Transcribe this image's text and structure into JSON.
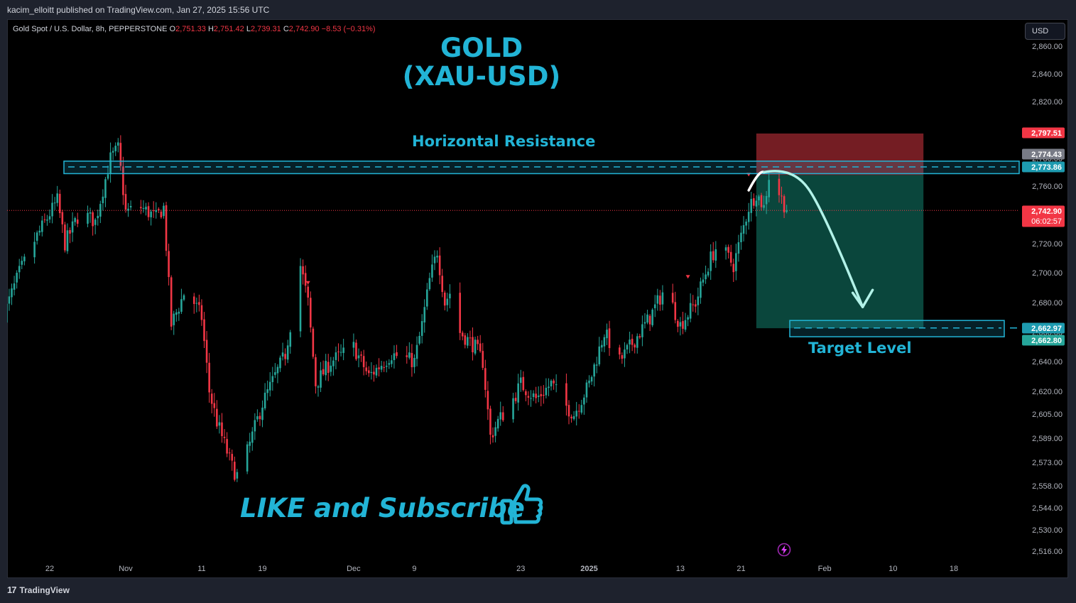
{
  "header": {
    "published_by": "kacim_elloitt published on TradingView.com, Jan 27, 2025 15:56 UTC"
  },
  "footer": {
    "brand": "TradingView"
  },
  "currency_button": "USD",
  "legend": {
    "symbol": "Gold Spot / U.S. Dollar, 8h, PEPPERSTONE",
    "o_key": "O",
    "o": "2,751.33",
    "h_key": "H",
    "h": "2,751.42",
    "l_key": "L",
    "l": "2,739.31",
    "c_key": "C",
    "c": "2,742.90",
    "change": "−8.53 (−0.31%)"
  },
  "annotations": {
    "title_line1": "GOLD",
    "title_line2": "(XAU-USD)",
    "resistance": "Horizontal Resistance",
    "target": "Target Level",
    "like": "LIKE and Subscribe"
  },
  "colors": {
    "up": "#26a69a",
    "down": "#f23645",
    "accent": "#22b4d6",
    "stop_zone": "#7a1f25",
    "profit_zone": "#0b4a3f"
  },
  "icons": {
    "thumb": "thumbs-up-icon",
    "lightning": "lightning-icon"
  },
  "chart_data": {
    "type": "candlestick",
    "symbol": "Gold Spot / U.S. Dollar",
    "interval": "8h",
    "y_ticks": [
      "2,860.00",
      "2,840.00",
      "2,820.00",
      "2,800.00",
      "2,780.00",
      "2,760.00",
      "2,740.00",
      "2,720.00",
      "2,700.00",
      "2,680.00",
      "2,660.00",
      "2,640.00",
      "2,620.00",
      "2,605.00",
      "2,589.00",
      "2,573.00",
      "2,558.00",
      "2,544.00",
      "2,530.00",
      "2,516.00"
    ],
    "x_ticks": [
      {
        "label": "22",
        "date": "2024-10-22"
      },
      {
        "label": "Nov",
        "date": "2024-11-01"
      },
      {
        "label": "11",
        "date": "2024-11-11"
      },
      {
        "label": "19",
        "date": "2024-11-19"
      },
      {
        "label": "Dec",
        "date": "2024-12-01"
      },
      {
        "label": "9",
        "date": "2024-12-09"
      },
      {
        "label": "23",
        "date": "2024-12-23"
      },
      {
        "label": "2025",
        "date": "2025-01-01"
      },
      {
        "label": "13",
        "date": "2025-01-13"
      },
      {
        "label": "21",
        "date": "2025-01-21"
      },
      {
        "label": "Feb",
        "date": "2025-02-01"
      },
      {
        "label": "10",
        "date": "2025-02-10"
      },
      {
        "label": "18",
        "date": "2025-02-18"
      }
    ],
    "price_labels": [
      {
        "value": 2797.51,
        "text": "2,797.51",
        "color": "#f23645"
      },
      {
        "value": 2774.43,
        "text": "2,774.43",
        "color": "#787b86"
      },
      {
        "value": 2773.86,
        "text": "2,773.86",
        "color": "#1e9bb0"
      },
      {
        "value": 2742.9,
        "text": "2,742.90",
        "color": "#f23645",
        "countdown": "06:02:57"
      },
      {
        "value": 2662.97,
        "text": "2,662.97",
        "color": "#1e9bb0"
      },
      {
        "value": 2662.8,
        "text": "2,662.80",
        "color": "#26a69a"
      }
    ],
    "last_price": 2742.9,
    "resistance_zone": {
      "start": "2024-10-16",
      "end": "2025-03-01",
      "top": 2778,
      "bottom": 2769,
      "level": 2773.86
    },
    "target_zone": {
      "start": "2025-01-24",
      "end": "2025-02-24",
      "top": 2668,
      "bottom": 2657,
      "level": 2662.97
    },
    "short_position": {
      "start": "2025-01-23",
      "end": "2025-02-14",
      "entry": 2768,
      "stop": 2797.51,
      "target": 2662.8
    },
    "path": [
      {
        "date": "2024-10-16",
        "price": 2672
      },
      {
        "date": "2024-10-18",
        "price": 2700
      },
      {
        "date": "2024-10-20",
        "price": 2722
      },
      {
        "date": "2024-10-23",
        "price": 2750
      },
      {
        "date": "2024-10-24",
        "price": 2720
      },
      {
        "date": "2024-10-26",
        "price": 2742
      },
      {
        "date": "2024-10-28",
        "price": 2735
      },
      {
        "date": "2024-10-30",
        "price": 2780
      },
      {
        "date": "2024-10-31",
        "price": 2787
      },
      {
        "date": "2024-11-01",
        "price": 2742
      },
      {
        "date": "2024-11-03",
        "price": 2745
      },
      {
        "date": "2024-11-05",
        "price": 2738
      },
      {
        "date": "2024-11-06",
        "price": 2745
      },
      {
        "date": "2024-11-07",
        "price": 2665
      },
      {
        "date": "2024-11-09",
        "price": 2690
      },
      {
        "date": "2024-11-11",
        "price": 2670
      },
      {
        "date": "2024-11-12",
        "price": 2620
      },
      {
        "date": "2024-11-13",
        "price": 2600
      },
      {
        "date": "2024-11-15",
        "price": 2570
      },
      {
        "date": "2024-11-16",
        "price": 2562
      },
      {
        "date": "2024-11-17",
        "price": 2580
      },
      {
        "date": "2024-11-19",
        "price": 2612
      },
      {
        "date": "2024-11-22",
        "price": 2645
      },
      {
        "date": "2024-11-24",
        "price": 2705
      },
      {
        "date": "2024-11-25",
        "price": 2680
      },
      {
        "date": "2024-11-26",
        "price": 2625
      },
      {
        "date": "2024-11-28",
        "price": 2640
      },
      {
        "date": "2024-12-01",
        "price": 2650
      },
      {
        "date": "2024-12-03",
        "price": 2630
      },
      {
        "date": "2024-12-06",
        "price": 2645
      },
      {
        "date": "2024-12-09",
        "price": 2640
      },
      {
        "date": "2024-12-10",
        "price": 2665
      },
      {
        "date": "2024-12-11",
        "price": 2695
      },
      {
        "date": "2024-12-12",
        "price": 2715
      },
      {
        "date": "2024-12-13",
        "price": 2680
      },
      {
        "date": "2024-12-14",
        "price": 2690
      },
      {
        "date": "2024-12-15",
        "price": 2660
      },
      {
        "date": "2024-12-17",
        "price": 2650
      },
      {
        "date": "2024-12-18",
        "price": 2640
      },
      {
        "date": "2024-12-19",
        "price": 2590
      },
      {
        "date": "2024-12-20",
        "price": 2600
      },
      {
        "date": "2024-12-22",
        "price": 2615
      },
      {
        "date": "2024-12-23",
        "price": 2625
      },
      {
        "date": "2024-12-25",
        "price": 2615
      },
      {
        "date": "2024-12-27",
        "price": 2625
      },
      {
        "date": "2024-12-29",
        "price": 2610
      },
      {
        "date": "2024-12-30",
        "price": 2605
      },
      {
        "date": "2025-01-01",
        "price": 2625
      },
      {
        "date": "2025-01-03",
        "price": 2660
      },
      {
        "date": "2025-01-05",
        "price": 2640
      },
      {
        "date": "2025-01-07",
        "price": 2655
      },
      {
        "date": "2025-01-09",
        "price": 2670
      },
      {
        "date": "2025-01-11",
        "price": 2690
      },
      {
        "date": "2025-01-13",
        "price": 2665
      },
      {
        "date": "2025-01-15",
        "price": 2680
      },
      {
        "date": "2025-01-17",
        "price": 2710
      },
      {
        "date": "2025-01-18",
        "price": 2720
      },
      {
        "date": "2025-01-20",
        "price": 2705
      },
      {
        "date": "2025-01-21",
        "price": 2725
      },
      {
        "date": "2025-01-22",
        "price": 2745
      },
      {
        "date": "2025-01-23",
        "price": 2755
      },
      {
        "date": "2025-01-24",
        "price": 2745
      },
      {
        "date": "2025-01-25",
        "price": 2778
      },
      {
        "date": "2025-01-26",
        "price": 2755
      },
      {
        "date": "2025-01-27",
        "price": 2742.9
      }
    ],
    "markers": [
      {
        "date": "2024-11-25",
        "price": 2693
      },
      {
        "date": "2025-01-14",
        "price": 2697
      },
      {
        "date": "2025-01-22",
        "price": 2768
      }
    ],
    "projection": [
      {
        "date": "2025-01-22",
        "price": 2757
      },
      {
        "date": "2025-01-24",
        "price": 2770
      },
      {
        "date": "2025-01-25",
        "price": 2771
      },
      {
        "date": "2025-01-28",
        "price": 2760
      },
      {
        "date": "2025-01-31",
        "price": 2730
      },
      {
        "date": "2025-02-04",
        "price": 2688
      },
      {
        "date": "2025-02-06",
        "price": 2677
      }
    ]
  }
}
